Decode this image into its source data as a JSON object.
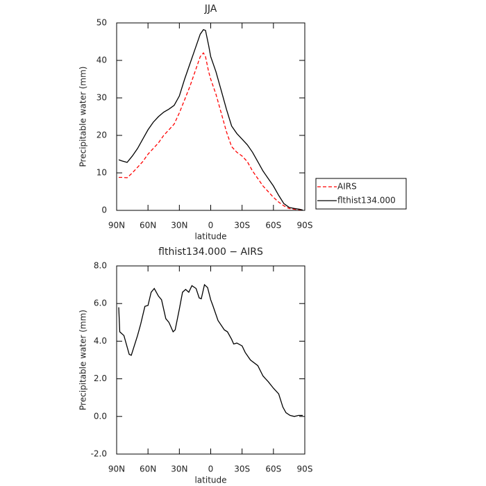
{
  "chart_data": [
    {
      "type": "line",
      "title": "JJA",
      "xlabel": "latitude",
      "ylabel": "Precipitable water (mm)",
      "x": [
        88,
        85,
        80,
        75,
        70,
        65,
        60,
        55,
        50,
        45,
        40,
        35,
        30,
        25,
        20,
        15,
        10,
        7,
        5,
        2,
        0,
        -5,
        -10,
        -15,
        -20,
        -25,
        -30,
        -35,
        -40,
        -45,
        -50,
        -55,
        -60,
        -65,
        -70,
        -75,
        -80,
        -85,
        -88
      ],
      "series": [
        {
          "name": "AIRS",
          "color": "#ff0000",
          "dashed": true,
          "values": [
            8.8,
            8.8,
            8.7,
            10,
            11.5,
            13,
            15,
            16.5,
            18,
            20,
            21.5,
            23,
            26,
            29.5,
            33,
            37,
            41,
            42,
            41,
            37,
            35,
            31,
            26,
            21,
            17,
            15.5,
            14.5,
            13,
            10.5,
            8.5,
            6.5,
            5,
            3.5,
            2.2,
            1.2,
            0.5,
            0.3,
            0.2,
            0.1
          ]
        },
        {
          "name": "flthist134.000",
          "color": "#000000",
          "dashed": false,
          "values": [
            13.5,
            13.2,
            12.8,
            14.5,
            16.5,
            19,
            21.5,
            23.5,
            25,
            26.2,
            27,
            28,
            30.5,
            35,
            39,
            43,
            47,
            48.2,
            48,
            44,
            41,
            37,
            32,
            27,
            22.5,
            20.5,
            19,
            17.5,
            15.5,
            13,
            10.5,
            8.5,
            6.5,
            4,
            1.8,
            0.8,
            0.5,
            0.3,
            0.1
          ]
        }
      ],
      "xlim": [
        90,
        -90
      ],
      "xticks": [
        {
          "value": 90,
          "label": "90N"
        },
        {
          "value": 60,
          "label": "60N"
        },
        {
          "value": 30,
          "label": "30N"
        },
        0,
        {
          "value": -30,
          "label": "30S"
        },
        {
          "value": -60,
          "label": "60S"
        },
        {
          "value": -90,
          "label": "90S"
        }
      ],
      "ylim": [
        0,
        50
      ],
      "yticks": [
        0,
        10,
        20,
        30,
        40,
        50
      ],
      "legend": "right"
    },
    {
      "type": "line",
      "title": "flthist134.000 − AIRS",
      "xlabel": "latitude",
      "ylabel": "Precipitable water (mm)",
      "x": [
        88,
        87,
        83,
        78,
        76,
        70,
        67,
        63,
        60,
        57,
        54,
        50,
        47,
        43,
        40,
        36,
        34,
        30,
        27,
        24,
        21,
        18,
        14,
        11,
        9,
        6,
        3,
        0,
        -2,
        -7,
        -13,
        -16,
        -20,
        -22,
        -25,
        -30,
        -33,
        -38,
        -45,
        -50,
        -55,
        -60,
        -65,
        -69,
        -72,
        -76,
        -80,
        -84,
        -88
      ],
      "values": [
        5.8,
        4.5,
        4.3,
        3.3,
        3.25,
        4.3,
        4.9,
        5.85,
        5.9,
        6.6,
        6.8,
        6.4,
        6.2,
        5.2,
        5.0,
        4.5,
        4.6,
        5.7,
        6.6,
        6.75,
        6.6,
        6.95,
        6.8,
        6.3,
        6.25,
        7.0,
        6.85,
        6.2,
        5.9,
        5.1,
        4.6,
        4.5,
        4.1,
        3.85,
        3.9,
        3.75,
        3.4,
        3.0,
        2.7,
        2.15,
        1.85,
        1.5,
        1.2,
        0.5,
        0.2,
        0.05,
        0.0,
        0.05,
        0.05
      ],
      "color": "#000000",
      "xlim": [
        90,
        -90
      ],
      "xticks": [
        {
          "value": 90,
          "label": "90N"
        },
        {
          "value": 60,
          "label": "60N"
        },
        {
          "value": 30,
          "label": "30N"
        },
        0,
        {
          "value": -30,
          "label": "30S"
        },
        {
          "value": -60,
          "label": "60S"
        },
        {
          "value": -90,
          "label": "90S"
        }
      ],
      "ylim": [
        -2,
        8
      ],
      "yticks": [
        {
          "value": -2,
          "label": "-2.0"
        },
        {
          "value": 0,
          "label": "0.0"
        },
        {
          "value": 2,
          "label": "2.0"
        },
        {
          "value": 4,
          "label": "4.0"
        },
        {
          "value": 6,
          "label": "6.0"
        },
        {
          "value": 8,
          "label": "8.0"
        }
      ]
    }
  ]
}
